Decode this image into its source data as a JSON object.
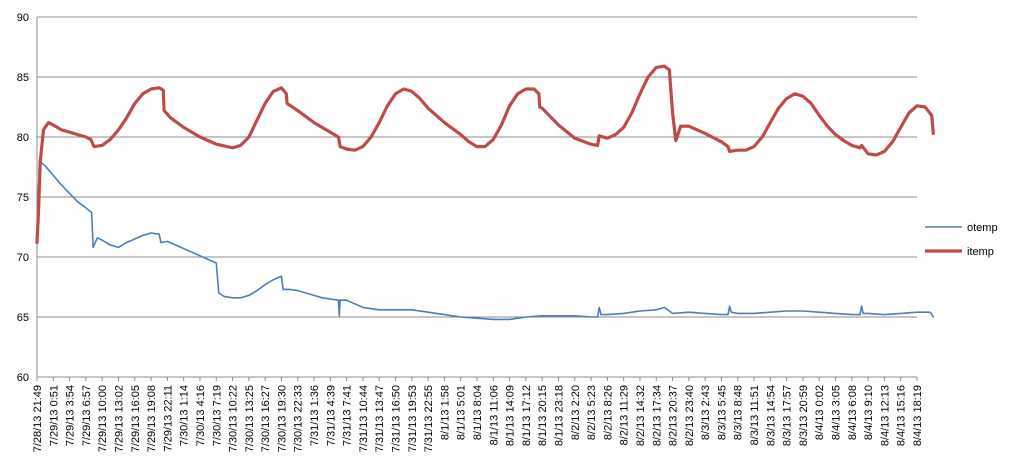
{
  "chart_data": {
    "type": "line",
    "title": "",
    "xlabel": "",
    "ylabel": "",
    "ylim": [
      60,
      90
    ],
    "yticks": [
      60,
      65,
      70,
      75,
      80,
      85,
      90
    ],
    "grid": "horizontal",
    "legend_position": "right",
    "x_tick_labels": [
      "7/28/13 21:49",
      "7/29/13 0:51",
      "7/29/13 3:54",
      "7/29/13 6:57",
      "7/29/13 10:00",
      "7/29/13 13:02",
      "7/29/13 16:05",
      "7/29/13 19:08",
      "7/29/13 22:11",
      "7/30/13 1:14",
      "7/30/13 4:16",
      "7/30/13 7:19",
      "7/30/13 10:22",
      "7/30/13 13:25",
      "7/30/13 16:27",
      "7/30/13 19:30",
      "7/30/13 22:33",
      "7/31/13 1:36",
      "7/31/13 4:39",
      "7/31/13 7:41",
      "7/31/13 10:44",
      "7/31/13 13:47",
      "7/31/13 16:50",
      "7/31/13 19:53",
      "7/31/13 22:55",
      "8/1/13 1:58",
      "8/1/13 5:01",
      "8/1/13 8:04",
      "8/1/13 11:06",
      "8/1/13 14:09",
      "8/1/13 17:12",
      "8/1/13 20:15",
      "8/1/13 23:18",
      "8/2/13 2:20",
      "8/2/13 5:23",
      "8/2/13 8:26",
      "8/2/13 11:29",
      "8/2/13 14:32",
      "8/2/13 17:34",
      "8/2/13 20:37",
      "8/2/13 23:40",
      "8/3/13 2:43",
      "8/3/13 5:45",
      "8/3/13 8:48",
      "8/3/13 11:51",
      "8/3/13 14:54",
      "8/3/13 17:57",
      "8/3/13 20:59",
      "8/4/13 0:02",
      "8/4/13 3:05",
      "8/4/13 6:08",
      "8/4/13 9:10",
      "8/4/13 12:13",
      "8/4/13 15:16",
      "8/4/13 18:19"
    ],
    "series": [
      {
        "name": "otemp",
        "color": "#4a7ebb",
        "points": [
          [
            0,
            71.5
          ],
          [
            0.15,
            78.0
          ],
          [
            0.5,
            77.6
          ],
          [
            1,
            76.8
          ],
          [
            1.5,
            76.0
          ],
          [
            2,
            75.3
          ],
          [
            2.5,
            74.6
          ],
          [
            3,
            74.1
          ],
          [
            3.35,
            73.7
          ],
          [
            3.45,
            70.8
          ],
          [
            3.7,
            71.6
          ],
          [
            4,
            71.4
          ],
          [
            4.5,
            71.0
          ],
          [
            5,
            70.8
          ],
          [
            5.5,
            71.2
          ],
          [
            6,
            71.5
          ],
          [
            6.5,
            71.8
          ],
          [
            7,
            72.0
          ],
          [
            7.5,
            71.9
          ],
          [
            7.6,
            71.2
          ],
          [
            8,
            71.3
          ],
          [
            8.5,
            71.0
          ],
          [
            9,
            70.7
          ],
          [
            9.5,
            70.4
          ],
          [
            10,
            70.1
          ],
          [
            10.5,
            69.8
          ],
          [
            11,
            69.5
          ],
          [
            11.15,
            67.0
          ],
          [
            11.5,
            66.7
          ],
          [
            12,
            66.6
          ],
          [
            12.5,
            66.6
          ],
          [
            13,
            66.8
          ],
          [
            13.5,
            67.2
          ],
          [
            14,
            67.7
          ],
          [
            14.5,
            68.1
          ],
          [
            15,
            68.4
          ],
          [
            15.1,
            67.3
          ],
          [
            15.5,
            67.3
          ],
          [
            16,
            67.2
          ],
          [
            16.5,
            67.0
          ],
          [
            17,
            66.8
          ],
          [
            17.5,
            66.6
          ],
          [
            18,
            66.5
          ],
          [
            18.5,
            66.4
          ],
          [
            18.55,
            65.1
          ],
          [
            18.6,
            66.4
          ],
          [
            19,
            66.4
          ],
          [
            19.5,
            66.1
          ],
          [
            20,
            65.8
          ],
          [
            21,
            65.6
          ],
          [
            22,
            65.6
          ],
          [
            23,
            65.6
          ],
          [
            24,
            65.4
          ],
          [
            25,
            65.2
          ],
          [
            26,
            65.0
          ],
          [
            27,
            64.9
          ],
          [
            28,
            64.8
          ],
          [
            29,
            64.8
          ],
          [
            30,
            65.0
          ],
          [
            31,
            65.1
          ],
          [
            32,
            65.1
          ],
          [
            33,
            65.1
          ],
          [
            34,
            65.0
          ],
          [
            34.4,
            65.0
          ],
          [
            34.5,
            65.8
          ],
          [
            34.6,
            65.2
          ],
          [
            35,
            65.2
          ],
          [
            36,
            65.3
          ],
          [
            37,
            65.5
          ],
          [
            38,
            65.6
          ],
          [
            38.5,
            65.8
          ],
          [
            38.8,
            65.5
          ],
          [
            39,
            65.3
          ],
          [
            40,
            65.4
          ],
          [
            41,
            65.3
          ],
          [
            42,
            65.2
          ],
          [
            42.4,
            65.2
          ],
          [
            42.5,
            65.9
          ],
          [
            42.6,
            65.4
          ],
          [
            43,
            65.3
          ],
          [
            44,
            65.3
          ],
          [
            45,
            65.4
          ],
          [
            46,
            65.5
          ],
          [
            47,
            65.5
          ],
          [
            48,
            65.4
          ],
          [
            49,
            65.3
          ],
          [
            50,
            65.2
          ],
          [
            50.5,
            65.2
          ],
          [
            50.6,
            65.9
          ],
          [
            50.7,
            65.3
          ],
          [
            51,
            65.3
          ],
          [
            52,
            65.2
          ],
          [
            53,
            65.3
          ],
          [
            54,
            65.4
          ],
          [
            54.8,
            65.4
          ],
          [
            55,
            65.0
          ]
        ]
      },
      {
        "name": "itemp",
        "color": "#be4b48",
        "points": [
          [
            0,
            71.2
          ],
          [
            0.1,
            74.0
          ],
          [
            0.2,
            78.0
          ],
          [
            0.4,
            80.6
          ],
          [
            0.7,
            81.2
          ],
          [
            1,
            81.0
          ],
          [
            1.5,
            80.6
          ],
          [
            2,
            80.4
          ],
          [
            2.5,
            80.2
          ],
          [
            3,
            80.0
          ],
          [
            3.3,
            79.8
          ],
          [
            3.5,
            79.2
          ],
          [
            4,
            79.3
          ],
          [
            4.5,
            79.8
          ],
          [
            5,
            80.6
          ],
          [
            5.5,
            81.6
          ],
          [
            6,
            82.8
          ],
          [
            6.5,
            83.6
          ],
          [
            7,
            84.0
          ],
          [
            7.5,
            84.1
          ],
          [
            7.75,
            83.9
          ],
          [
            7.8,
            82.2
          ],
          [
            8.2,
            81.6
          ],
          [
            9,
            80.8
          ],
          [
            10,
            80.0
          ],
          [
            11,
            79.4
          ],
          [
            12,
            79.1
          ],
          [
            12.5,
            79.3
          ],
          [
            13,
            80.0
          ],
          [
            13.5,
            81.4
          ],
          [
            14,
            82.8
          ],
          [
            14.5,
            83.8
          ],
          [
            15,
            84.1
          ],
          [
            15.3,
            83.6
          ],
          [
            15.35,
            82.8
          ],
          [
            16,
            82.2
          ],
          [
            17,
            81.2
          ],
          [
            18,
            80.4
          ],
          [
            18.5,
            80.0
          ],
          [
            18.6,
            79.2
          ],
          [
            19,
            79.0
          ],
          [
            19.5,
            78.9
          ],
          [
            20,
            79.2
          ],
          [
            20.5,
            80.0
          ],
          [
            21,
            81.2
          ],
          [
            21.5,
            82.6
          ],
          [
            22,
            83.6
          ],
          [
            22.5,
            84.0
          ],
          [
            23,
            83.8
          ],
          [
            23.5,
            83.2
          ],
          [
            24,
            82.4
          ],
          [
            25,
            81.2
          ],
          [
            26,
            80.2
          ],
          [
            26.5,
            79.6
          ],
          [
            27,
            79.2
          ],
          [
            27.5,
            79.2
          ],
          [
            28,
            79.8
          ],
          [
            28.5,
            81.0
          ],
          [
            29,
            82.6
          ],
          [
            29.5,
            83.6
          ],
          [
            30,
            84.0
          ],
          [
            30.5,
            84.0
          ],
          [
            30.8,
            83.6
          ],
          [
            30.85,
            82.5
          ],
          [
            31,
            82.4
          ],
          [
            32,
            81.0
          ],
          [
            33,
            79.9
          ],
          [
            34,
            79.4
          ],
          [
            34.4,
            79.3
          ],
          [
            34.5,
            80.1
          ],
          [
            35,
            79.9
          ],
          [
            35.5,
            80.2
          ],
          [
            36,
            80.8
          ],
          [
            36.5,
            82.0
          ],
          [
            37,
            83.6
          ],
          [
            37.5,
            85.0
          ],
          [
            38,
            85.8
          ],
          [
            38.5,
            85.9
          ],
          [
            38.8,
            85.6
          ],
          [
            39,
            82.0
          ],
          [
            39.2,
            79.7
          ],
          [
            39.5,
            80.9
          ],
          [
            40,
            80.9
          ],
          [
            41,
            80.3
          ],
          [
            42,
            79.6
          ],
          [
            42.4,
            79.2
          ],
          [
            42.5,
            78.8
          ],
          [
            43,
            78.9
          ],
          [
            43.5,
            78.9
          ],
          [
            44,
            79.2
          ],
          [
            44.5,
            80.0
          ],
          [
            45,
            81.2
          ],
          [
            45.5,
            82.4
          ],
          [
            46,
            83.2
          ],
          [
            46.5,
            83.6
          ],
          [
            47,
            83.4
          ],
          [
            47.5,
            82.8
          ],
          [
            48,
            81.8
          ],
          [
            48.5,
            80.9
          ],
          [
            49,
            80.2
          ],
          [
            49.5,
            79.7
          ],
          [
            50,
            79.3
          ],
          [
            50.5,
            79.1
          ],
          [
            50.6,
            79.3
          ],
          [
            51,
            78.6
          ],
          [
            51.5,
            78.5
          ],
          [
            52,
            78.8
          ],
          [
            52.5,
            79.6
          ],
          [
            53,
            80.8
          ],
          [
            53.5,
            82.0
          ],
          [
            54,
            82.6
          ],
          [
            54.5,
            82.5
          ],
          [
            54.9,
            81.8
          ],
          [
            55,
            80.3
          ]
        ]
      }
    ]
  }
}
